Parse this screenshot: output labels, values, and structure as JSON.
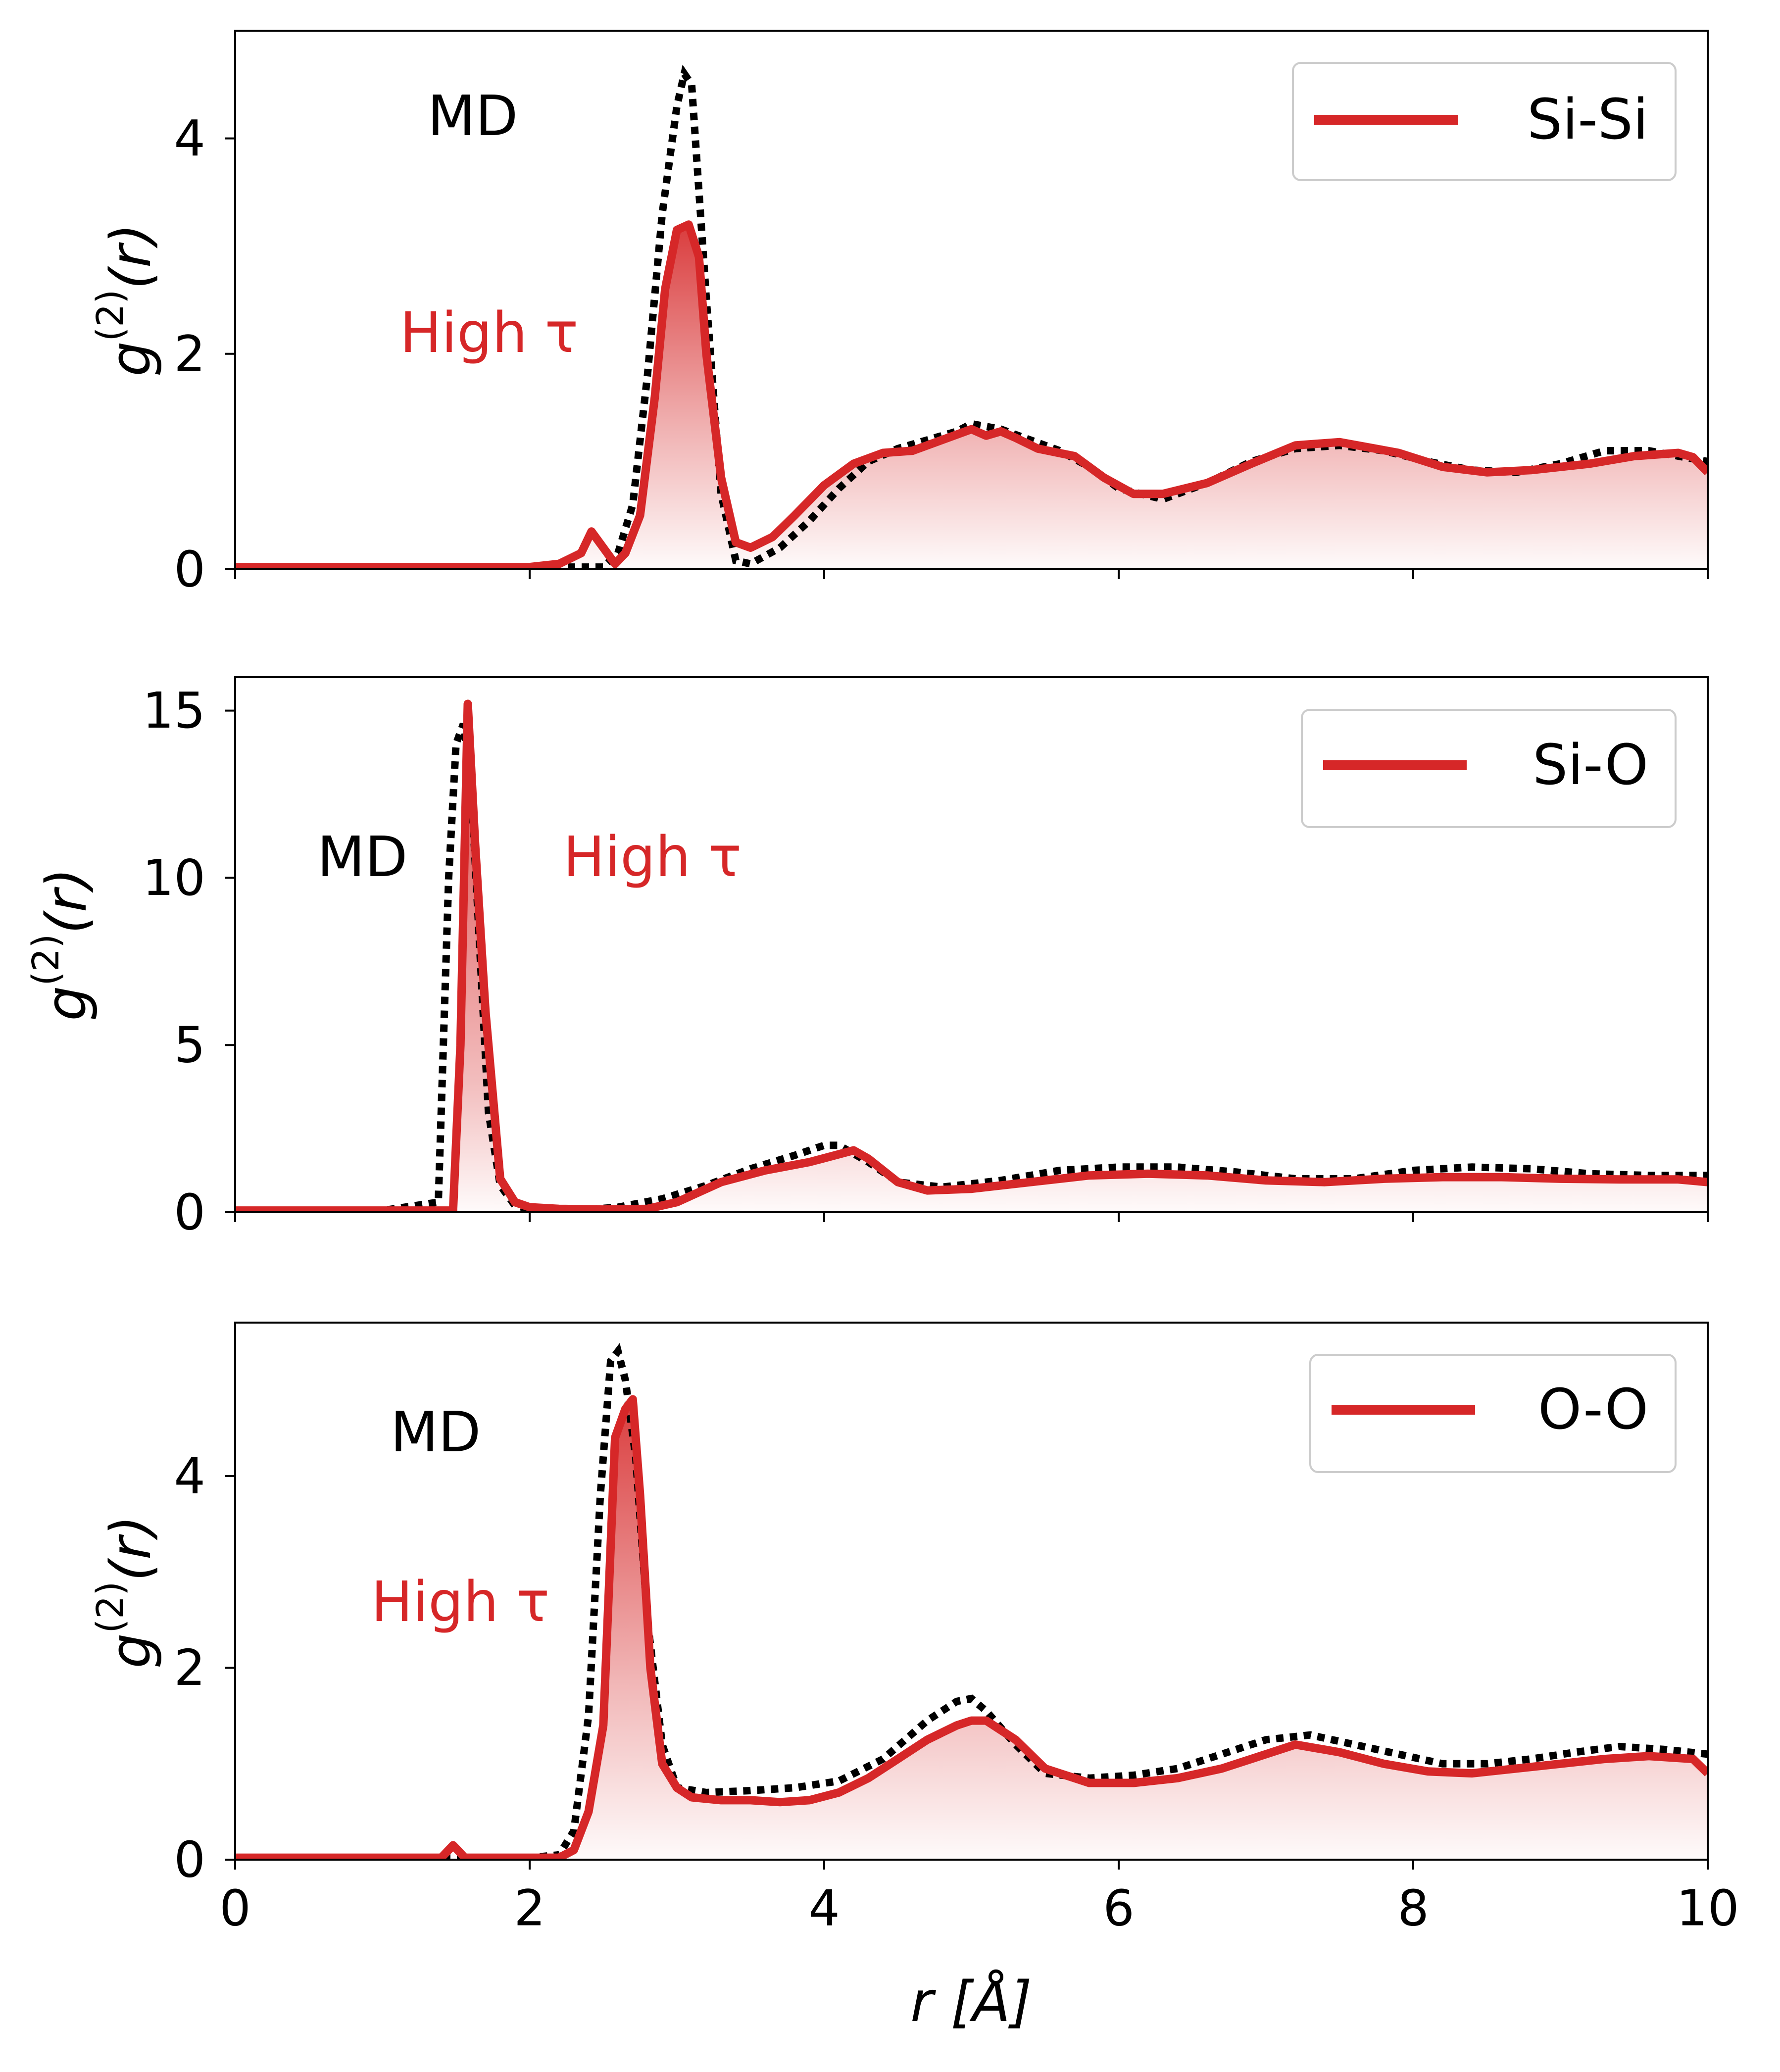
{
  "colors": {
    "accent_red": "#d62728",
    "md_black": "#000000",
    "frame": "#000000",
    "legend_border": "#cccccc"
  },
  "chart_data": [
    {
      "type": "line",
      "panel": "top",
      "legend": {
        "label": "Si-Si",
        "placement": "top-right"
      },
      "ylabel": "g(2)(r)",
      "xlim": [
        0,
        10
      ],
      "ylim": [
        0,
        5.0
      ],
      "yticks": [
        "0",
        "2",
        "4"
      ],
      "ytick_values": [
        0,
        2,
        4
      ],
      "annotations": {
        "md": "MD",
        "high_tau": "High τ"
      },
      "series": [
        {
          "name": "High τ",
          "style": "solid-red-with-fill",
          "x": [
            0,
            1,
            2,
            2.2,
            2.35,
            2.42,
            2.5,
            2.58,
            2.65,
            2.75,
            2.85,
            2.92,
            3.0,
            3.08,
            3.15,
            3.2,
            3.3,
            3.4,
            3.5,
            3.65,
            3.8,
            4.0,
            4.2,
            4.4,
            4.6,
            4.8,
            5.0,
            5.1,
            5.2,
            5.3,
            5.45,
            5.7,
            5.9,
            6.1,
            6.3,
            6.6,
            6.9,
            7.2,
            7.5,
            7.9,
            8.2,
            8.5,
            8.8,
            9.2,
            9.5,
            9.8,
            9.9,
            10.0
          ],
          "y": [
            0.02,
            0.02,
            0.02,
            0.05,
            0.15,
            0.35,
            0.2,
            0.05,
            0.15,
            0.5,
            1.6,
            2.6,
            3.15,
            3.2,
            2.9,
            2.0,
            0.85,
            0.25,
            0.2,
            0.3,
            0.5,
            0.78,
            0.98,
            1.08,
            1.1,
            1.2,
            1.3,
            1.24,
            1.28,
            1.22,
            1.12,
            1.05,
            0.85,
            0.7,
            0.7,
            0.8,
            0.98,
            1.15,
            1.18,
            1.08,
            0.95,
            0.9,
            0.92,
            0.98,
            1.05,
            1.08,
            1.04,
            0.9
          ]
        },
        {
          "name": "MD",
          "style": "dotted-black",
          "x": [
            0,
            1,
            2,
            2.3,
            2.5,
            2.6,
            2.7,
            2.8,
            2.9,
            3.0,
            3.05,
            3.1,
            3.2,
            3.3,
            3.4,
            3.5,
            3.7,
            3.9,
            4.1,
            4.3,
            4.5,
            4.7,
            4.9,
            5.0,
            5.2,
            5.4,
            5.6,
            5.8,
            6.0,
            6.3,
            6.6,
            6.9,
            7.2,
            7.5,
            7.8,
            8.1,
            8.4,
            8.7,
            9.0,
            9.3,
            9.6,
            9.8,
            10.0
          ],
          "y": [
            0.02,
            0.02,
            0.02,
            0.02,
            0.02,
            0.15,
            0.6,
            1.8,
            3.3,
            4.3,
            4.6,
            4.5,
            2.5,
            0.7,
            0.08,
            0.05,
            0.2,
            0.45,
            0.75,
            1.0,
            1.12,
            1.2,
            1.28,
            1.35,
            1.3,
            1.2,
            1.1,
            0.95,
            0.75,
            0.65,
            0.8,
            1.0,
            1.12,
            1.15,
            1.1,
            1.0,
            0.92,
            0.9,
            0.98,
            1.1,
            1.1,
            1.05,
            1.0
          ]
        }
      ]
    },
    {
      "type": "line",
      "panel": "middle",
      "legend": {
        "label": "Si-O",
        "placement": "top-right"
      },
      "ylabel": "g(2)(r)",
      "xlim": [
        0,
        10
      ],
      "ylim": [
        0,
        16.0
      ],
      "yticks": [
        "0",
        "5",
        "10",
        "15"
      ],
      "ytick_values": [
        0,
        5,
        10,
        15
      ],
      "annotations": {
        "md": "MD",
        "high_tau": "High τ"
      },
      "series": [
        {
          "name": "High τ",
          "style": "solid-red-with-fill",
          "x": [
            0,
            1,
            1.4,
            1.48,
            1.53,
            1.58,
            1.63,
            1.7,
            1.8,
            1.9,
            2.0,
            2.2,
            2.5,
            2.8,
            3.0,
            3.3,
            3.6,
            3.9,
            4.2,
            4.3,
            4.5,
            4.7,
            5.0,
            5.4,
            5.8,
            6.2,
            6.6,
            7.0,
            7.4,
            7.8,
            8.2,
            8.6,
            9.0,
            9.4,
            9.8,
            10.0
          ],
          "y": [
            0.05,
            0.05,
            0.05,
            0.05,
            5.0,
            15.2,
            11.0,
            6.0,
            1.0,
            0.3,
            0.15,
            0.1,
            0.08,
            0.1,
            0.3,
            0.9,
            1.25,
            1.5,
            1.85,
            1.6,
            0.9,
            0.65,
            0.7,
            0.9,
            1.1,
            1.15,
            1.1,
            0.95,
            0.9,
            1.0,
            1.05,
            1.05,
            1.0,
            0.98,
            0.98,
            0.9
          ]
        },
        {
          "name": "MD",
          "style": "dotted-black",
          "x": [
            0,
            1,
            1.38,
            1.45,
            1.5,
            1.55,
            1.6,
            1.66,
            1.72,
            1.8,
            1.9,
            2.0,
            2.3,
            2.6,
            2.9,
            3.2,
            3.5,
            3.8,
            4.0,
            4.1,
            4.3,
            4.5,
            4.8,
            5.2,
            5.6,
            6.0,
            6.4,
            6.8,
            7.2,
            7.6,
            8.0,
            8.4,
            8.8,
            9.2,
            9.6,
            10.0
          ],
          "y": [
            0.05,
            0.05,
            0.3,
            10.0,
            14.0,
            14.6,
            13.0,
            8.0,
            3.0,
            0.8,
            0.2,
            0.1,
            0.05,
            0.15,
            0.4,
            0.8,
            1.3,
            1.7,
            2.0,
            2.0,
            1.5,
            0.9,
            0.75,
            0.95,
            1.25,
            1.35,
            1.35,
            1.2,
            1.0,
            1.0,
            1.25,
            1.35,
            1.3,
            1.15,
            1.1,
            1.1
          ]
        }
      ]
    },
    {
      "type": "line",
      "panel": "bottom",
      "legend": {
        "label": "O-O",
        "placement": "top-right"
      },
      "ylabel": "g(2)(r)",
      "xlim": [
        0,
        10
      ],
      "ylim": [
        0,
        5.6
      ],
      "yticks": [
        "0",
        "2",
        "4"
      ],
      "ytick_values": [
        0,
        2,
        4
      ],
      "annotations": {
        "md": "MD",
        "high_tau": "High τ"
      },
      "series": [
        {
          "name": "High τ",
          "style": "solid-red-with-fill",
          "x": [
            0,
            1,
            1.4,
            1.48,
            1.56,
            1.7,
            2.0,
            2.2,
            2.3,
            2.4,
            2.5,
            2.58,
            2.65,
            2.7,
            2.75,
            2.82,
            2.9,
            3.0,
            3.1,
            3.3,
            3.5,
            3.7,
            3.9,
            4.1,
            4.3,
            4.5,
            4.7,
            4.9,
            5.0,
            5.1,
            5.3,
            5.5,
            5.8,
            6.1,
            6.4,
            6.7,
            7.0,
            7.2,
            7.5,
            7.8,
            8.1,
            8.4,
            8.7,
            9.0,
            9.3,
            9.6,
            9.9,
            10.0
          ],
          "y": [
            0.02,
            0.02,
            0.02,
            0.15,
            0.02,
            0.02,
            0.02,
            0.02,
            0.1,
            0.5,
            1.4,
            4.4,
            4.7,
            4.8,
            3.8,
            2.0,
            1.0,
            0.75,
            0.65,
            0.62,
            0.62,
            0.6,
            0.62,
            0.7,
            0.85,
            1.05,
            1.25,
            1.4,
            1.45,
            1.45,
            1.25,
            0.95,
            0.8,
            0.8,
            0.85,
            0.95,
            1.1,
            1.2,
            1.12,
            1.0,
            0.92,
            0.9,
            0.95,
            1.0,
            1.05,
            1.08,
            1.05,
            0.9
          ]
        },
        {
          "name": "MD",
          "style": "dotted-black",
          "x": [
            0,
            1,
            1.5,
            2.0,
            2.2,
            2.3,
            2.4,
            2.48,
            2.55,
            2.6,
            2.65,
            2.72,
            2.8,
            2.9,
            3.0,
            3.2,
            3.5,
            3.8,
            4.1,
            4.4,
            4.7,
            4.9,
            5.0,
            5.1,
            5.3,
            5.5,
            5.8,
            6.1,
            6.4,
            6.7,
            7.0,
            7.3,
            7.6,
            7.9,
            8.2,
            8.5,
            8.8,
            9.1,
            9.4,
            9.7,
            10.0
          ],
          "y": [
            0.02,
            0.02,
            0.02,
            0.02,
            0.05,
            0.3,
            1.5,
            3.8,
            5.2,
            5.3,
            5.0,
            4.2,
            2.5,
            1.2,
            0.75,
            0.7,
            0.72,
            0.75,
            0.82,
            1.05,
            1.45,
            1.65,
            1.68,
            1.55,
            1.2,
            0.9,
            0.85,
            0.88,
            0.95,
            1.1,
            1.25,
            1.3,
            1.2,
            1.1,
            1.0,
            1.0,
            1.05,
            1.12,
            1.18,
            1.15,
            1.1
          ]
        }
      ]
    }
  ],
  "x_axis": {
    "xticks": [
      "0",
      "2",
      "4",
      "6",
      "8",
      "10"
    ],
    "xtick_values": [
      0,
      2,
      4,
      6,
      8,
      10
    ],
    "xlabel": "r [Å]"
  }
}
